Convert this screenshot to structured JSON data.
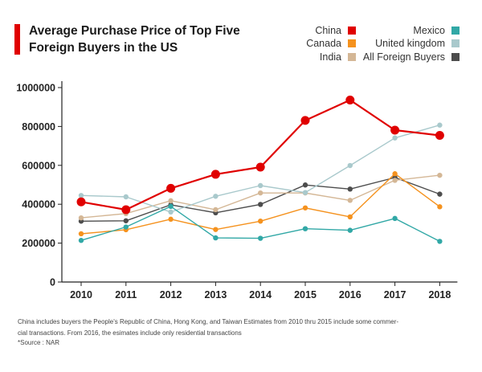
{
  "title_lines": [
    "Average Purchase Price of Top Five",
    "Foreign Buyers in the US"
  ],
  "footnote_lines": [
    "China includes buyers the People's Republic of China, Hong Kong, and Taiwan Estimates from 2010 thru 2015 include some commer-",
    "cial transactions. From 2016, the esimates include only residential transactions"
  ],
  "source": "*Source : NAR",
  "chart_data": {
    "type": "line",
    "title": "Average Purchase Price of Top Five Foreign Buyers in the US",
    "x": [
      2010,
      2011,
      2012,
      2013,
      2014,
      2015,
      2016,
      2017,
      2018
    ],
    "xtick_labels": [
      "2010",
      "2011",
      "2012",
      "2013",
      "2014",
      "2015",
      "2016",
      "2017",
      "2018"
    ],
    "yticks": [
      0,
      200000,
      400000,
      600000,
      800000,
      1000000
    ],
    "ytick_labels": [
      "0",
      "200000",
      "400000",
      "600000",
      "800000",
      "1000000"
    ],
    "ylim": [
      0,
      1000000
    ],
    "grid": false,
    "legend_position": "top-right",
    "series": [
      {
        "name": "All Foreign Buyers",
        "color": "#4d4d4d",
        "values": [
          313000,
          315000,
          397000,
          356000,
          399000,
          499000,
          478000,
          537000,
          452000
        ]
      },
      {
        "name": "India",
        "color": "#d4b796",
        "values": [
          330000,
          352000,
          418000,
          372000,
          458000,
          458000,
          420000,
          523000,
          549000
        ]
      },
      {
        "name": "United kingdom",
        "color": "#a9c9cc",
        "values": [
          445000,
          438000,
          360000,
          441000,
          496000,
          460000,
          599000,
          741000,
          807000
        ]
      },
      {
        "name": "Canada",
        "color": "#f5921e",
        "values": [
          248000,
          269000,
          323000,
          270000,
          313000,
          381000,
          335000,
          557000,
          387000
        ]
      },
      {
        "name": "Mexico",
        "color": "#31a8a6",
        "values": [
          214000,
          283000,
          389000,
          227000,
          225000,
          274000,
          266000,
          327000,
          209000
        ]
      },
      {
        "name": "China",
        "color": "#e00000",
        "values": [
          412000,
          372000,
          482000,
          554000,
          591000,
          831000,
          936000,
          781000,
          754000
        ]
      }
    ],
    "legend": [
      {
        "name": "China",
        "color": "#e00000"
      },
      {
        "name": "Mexico",
        "color": "#31a8a6"
      },
      {
        "name": "Canada",
        "color": "#f5921e"
      },
      {
        "name": "United kingdom",
        "color": "#a9c9cc"
      },
      {
        "name": "India",
        "color": "#d4b796"
      },
      {
        "name": "All Foreign Buyers",
        "color": "#4d4d4d"
      }
    ]
  }
}
